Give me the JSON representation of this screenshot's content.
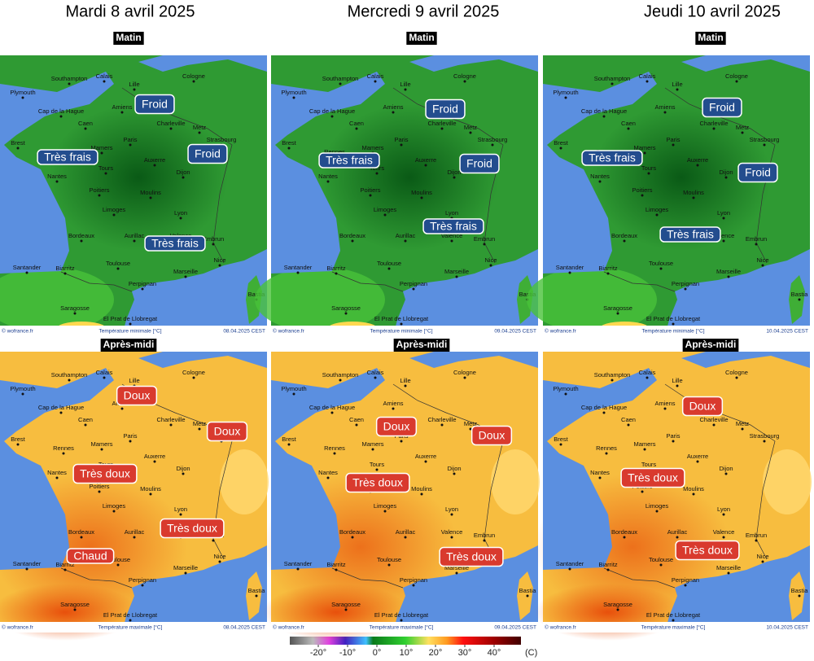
{
  "days": [
    "Mardi 8 avril 2025",
    "Mercredi 9 avril 2025",
    "Jeudi 10 avril 2025"
  ],
  "periods": [
    "Matin",
    "Après-midi"
  ],
  "credit": "© wofrance.fr",
  "maps": [
    {
      "caption": "Température minimale [°C]",
      "stamp": "08.04.2025 CEST",
      "annotations": [
        "Froid",
        "Très frais",
        "Froid",
        "Très frais"
      ]
    },
    {
      "caption": "Température minimale [°C]",
      "stamp": "09.04.2025 CEST",
      "annotations": [
        "Froid",
        "Très frais",
        "Froid",
        "Très frais"
      ]
    },
    {
      "caption": "Température minimale [°C]",
      "stamp": "10.04.2025 CEST",
      "annotations": [
        "Froid",
        "Très frais",
        "Froid",
        "Très frais"
      ]
    },
    {
      "caption": "Température maximale [°C]",
      "stamp": "08.04.2025 CEST",
      "annotations": [
        "Doux",
        "Doux",
        "Très doux",
        "Très doux",
        "Chaud"
      ]
    },
    {
      "caption": "Température maximale [°C]",
      "stamp": "09.04.2025 CEST",
      "annotations": [
        "Doux",
        "Doux",
        "Très doux",
        "Très doux"
      ]
    },
    {
      "caption": "Température maximale [°C]",
      "stamp": "10.04.2025 CEST",
      "annotations": [
        "Doux",
        "Très doux",
        "Très doux"
      ]
    }
  ],
  "cities": [
    "Plymouth",
    "Southampton",
    "Calais",
    "Lille",
    "Cologne",
    "Cap de la Hague",
    "Caen",
    "Amiens",
    "Charleville",
    "Metz",
    "Paris",
    "Strasbourg",
    "Brest",
    "Rennes",
    "Mamers",
    "Tours",
    "Nantes",
    "Auxerre",
    "Dijon",
    "Poitiers",
    "Moulins",
    "Limoges",
    "Lyon",
    "Bordeaux",
    "Aurillac",
    "Valence",
    "Embrun",
    "Toulouse",
    "Nice",
    "Marseille",
    "Santander",
    "Biarritz",
    "Perpignan",
    "Bastia",
    "Saragosse",
    "El Prat de Llobregat"
  ],
  "legend": {
    "ticks": [
      {
        "value": -20,
        "label": "-20°"
      },
      {
        "value": -10,
        "label": "-10°"
      },
      {
        "value": 0,
        "label": "0°"
      },
      {
        "value": 10,
        "label": "10°"
      },
      {
        "value": 20,
        "label": "20°"
      },
      {
        "value": 30,
        "label": "30°"
      },
      {
        "value": 40,
        "label": "40°"
      }
    ],
    "unit": "(C)"
  }
}
